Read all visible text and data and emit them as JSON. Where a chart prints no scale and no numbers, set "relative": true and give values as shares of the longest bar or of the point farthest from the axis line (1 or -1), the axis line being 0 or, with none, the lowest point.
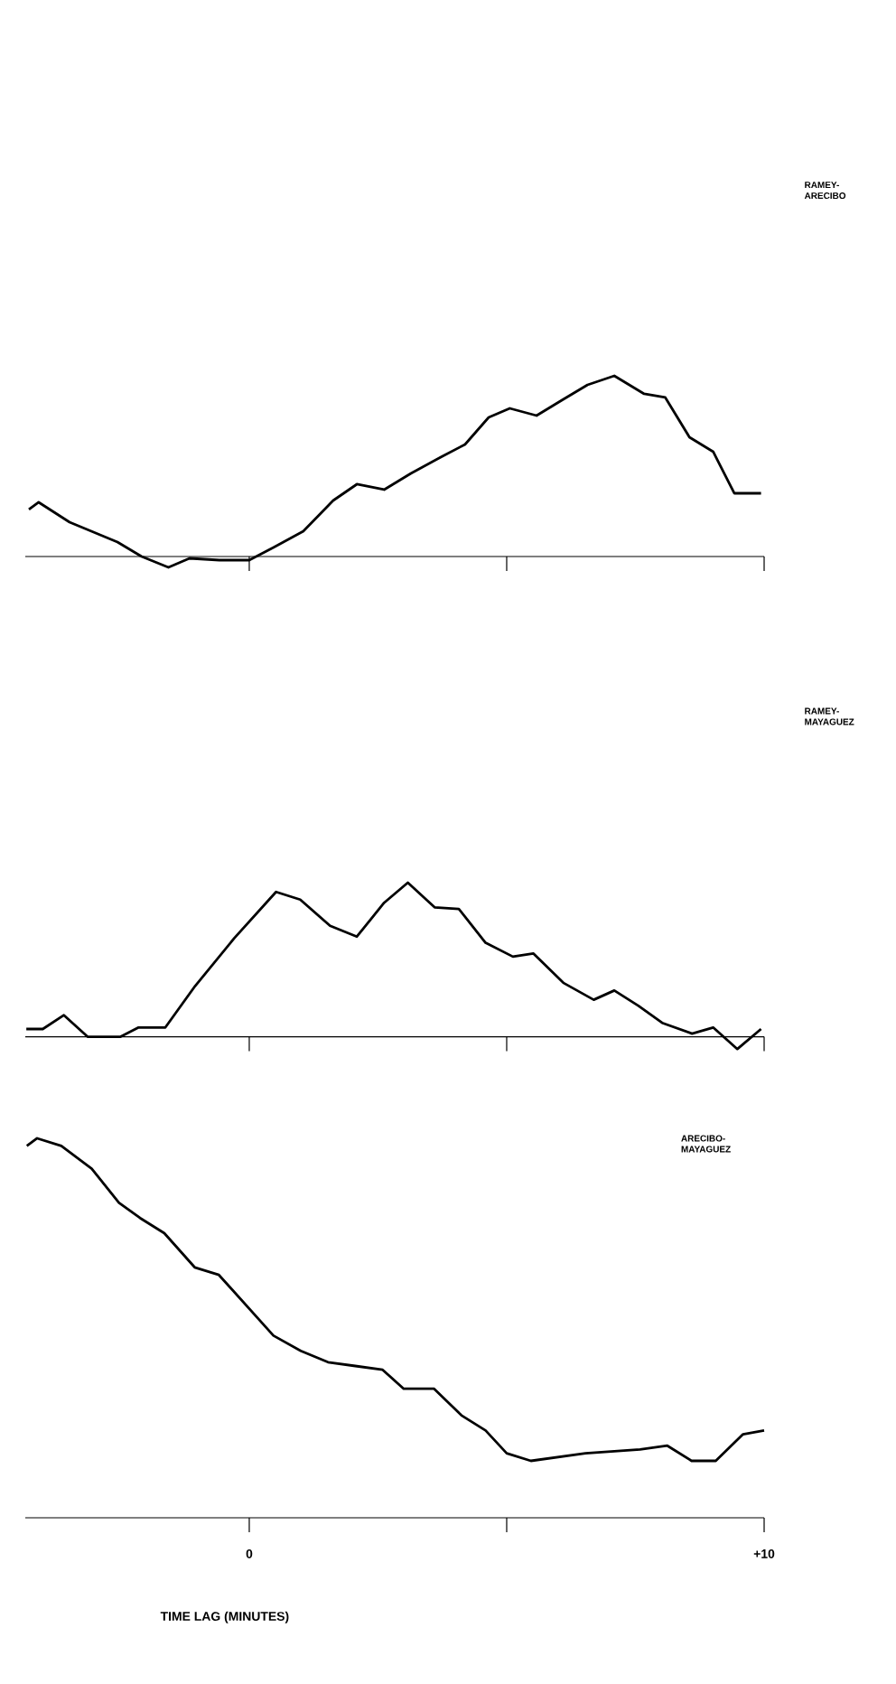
{
  "chart_data": [
    {
      "type": "line",
      "relative": true,
      "xlim": [
        -4.35,
        10
      ],
      "xticks": [
        {
          "value": 0,
          "label": null
        },
        {
          "value": 5,
          "label": null
        },
        {
          "value": 10,
          "label": null
        }
      ],
      "tick_labels": false,
      "x": [
        -4.28,
        -4.09,
        -3.49,
        -2.56,
        -2.09,
        -1.57,
        -1.16,
        -0.58,
        0,
        0.47,
        1.05,
        1.63,
        2.09,
        2.62,
        3.14,
        3.72,
        4.19,
        4.65,
        5.06,
        5.58,
        6.1,
        6.57,
        7.09,
        7.67,
        8.08,
        8.55,
        9.01,
        9.42,
        9.94
      ],
      "series": [
        {
          "name": "RAMEY-ARECIBO",
          "color": "#000000",
          "values": [
            0.26,
            0.3,
            0.19,
            0.08,
            0.0,
            -0.06,
            -0.01,
            -0.02,
            -0.02,
            0.05,
            0.14,
            0.31,
            0.4,
            0.37,
            0.46,
            0.55,
            0.62,
            0.77,
            0.82,
            0.78,
            0.87,
            0.95,
            1.0,
            0.9,
            0.88,
            0.66,
            0.58,
            0.35,
            0.35
          ]
        }
      ]
    },
    {
      "type": "line",
      "relative": true,
      "xlim": [
        -4.35,
        10
      ],
      "xticks": [
        {
          "value": 0,
          "label": null
        },
        {
          "value": 5,
          "label": null
        },
        {
          "value": 10,
          "label": null
        }
      ],
      "tick_labels": false,
      "x": [
        -4.33,
        -4.01,
        -3.6,
        -3.14,
        -2.5,
        -2.15,
        -1.63,
        -1.05,
        -0.29,
        0.52,
        0.99,
        1.57,
        2.09,
        2.62,
        3.08,
        3.6,
        4.07,
        4.59,
        5.12,
        5.52,
        6.1,
        6.69,
        7.09,
        7.56,
        8.02,
        8.6,
        9.01,
        9.48,
        9.94
      ],
      "series": [
        {
          "name": "RAMEY-MAYAGUEZ",
          "color": "#000000",
          "values": [
            0.05,
            0.05,
            0.14,
            0,
            0,
            0.06,
            0.06,
            0.33,
            0.64,
            0.94,
            0.89,
            0.72,
            0.65,
            0.87,
            1.0,
            0.84,
            0.83,
            0.61,
            0.52,
            0.54,
            0.35,
            0.24,
            0.3,
            0.2,
            0.09,
            0.02,
            0.06,
            -0.08,
            0.05
          ]
        }
      ]
    },
    {
      "type": "line",
      "relative": true,
      "xlim": [
        -4.35,
        10
      ],
      "xticks": [
        {
          "value": 0,
          "label": "0"
        },
        {
          "value": 5,
          "label": null
        },
        {
          "value": 10,
          "label": "+10"
        }
      ],
      "tick_labels": "x",
      "xlabel": "TIME LAG (MINUTES)",
      "x": [
        -4.32,
        -4.12,
        -3.65,
        -3.06,
        -2.53,
        -2.12,
        -1.65,
        -1.06,
        -0.59,
        -0.06,
        0.47,
        1.0,
        1.53,
        2.06,
        2.59,
        3.0,
        3.59,
        4.12,
        4.59,
        5.0,
        5.47,
        6.0,
        6.53,
        7.59,
        8.12,
        8.59,
        9.06,
        9.59,
        10.0
      ],
      "series": [
        {
          "name": "ARECIBO-MAYAGUEZ",
          "color": "#000000",
          "values": [
            0.98,
            1.0,
            0.98,
            0.92,
            0.83,
            0.79,
            0.75,
            0.66,
            0.64,
            0.56,
            0.48,
            0.44,
            0.41,
            0.4,
            0.39,
            0.34,
            0.34,
            0.27,
            0.23,
            0.17,
            0.15,
            0.16,
            0.17,
            0.18,
            0.19,
            0.15,
            0.15,
            0.22,
            0.23
          ]
        }
      ]
    }
  ]
}
